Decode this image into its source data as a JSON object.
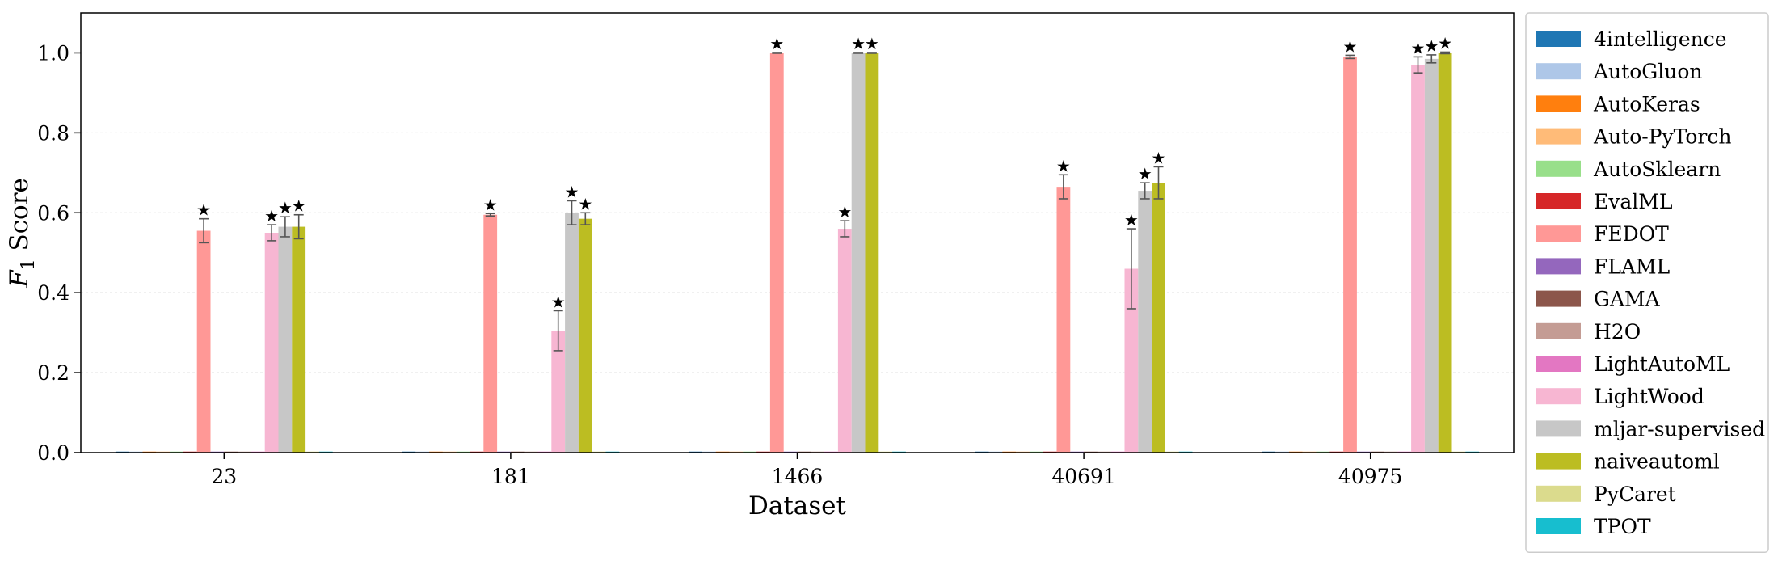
{
  "chart_data": {
    "type": "bar",
    "title": "",
    "xlabel": "Dataset",
    "ylabel": "F1 Score",
    "ylabel_main": "F",
    "ylabel_sub": "1",
    "ylabel_rest": " Score",
    "ylim": [
      0,
      1.1
    ],
    "yticks": [
      "0.0",
      "0.2",
      "0.4",
      "0.6",
      "0.8",
      "1.0"
    ],
    "grid": true,
    "legend_position": "right",
    "categories": [
      "23",
      "181",
      "1466",
      "40691",
      "40975"
    ],
    "series": [
      {
        "name": "4intelligence",
        "color": "#1f77b4",
        "values": [
          0,
          0,
          0,
          0,
          0
        ]
      },
      {
        "name": "AutoGluon",
        "color": "#aec7e8",
        "values": [
          0,
          0,
          0,
          0,
          0
        ]
      },
      {
        "name": "AutoKeras",
        "color": "#ff7f0e",
        "values": [
          0,
          0,
          0,
          0,
          0
        ]
      },
      {
        "name": "Auto-PyTorch",
        "color": "#ffbb78",
        "values": [
          0,
          0,
          0,
          0,
          0
        ]
      },
      {
        "name": "AutoSklearn",
        "color": "#98df8a",
        "values": [
          0,
          0,
          0,
          0,
          0
        ]
      },
      {
        "name": "EvalML",
        "color": "#d62728",
        "values": [
          0,
          0,
          0,
          0,
          0
        ]
      },
      {
        "name": "FEDOT",
        "color": "#ff9896",
        "values": [
          0.555,
          0.595,
          1.0,
          0.665,
          0.99
        ],
        "errors": [
          0.03,
          0.003,
          0.001,
          0.03,
          0.004
        ]
      },
      {
        "name": "FLAML",
        "color": "#9467bd",
        "values": [
          0,
          0,
          0,
          0,
          0
        ]
      },
      {
        "name": "GAMA",
        "color": "#8c564b",
        "values": [
          0,
          0,
          0,
          0,
          0
        ]
      },
      {
        "name": "H2O",
        "color": "#c49c94",
        "values": [
          0,
          0,
          0,
          0,
          0
        ]
      },
      {
        "name": "LightAutoML",
        "color": "#e377c2",
        "values": [
          0,
          0,
          0,
          0,
          0
        ]
      },
      {
        "name": "LightWood",
        "color": "#f7b6d2",
        "values": [
          0.55,
          0.305,
          0.56,
          0.46,
          0.97
        ],
        "errors": [
          0.02,
          0.05,
          0.02,
          0.1,
          0.02
        ]
      },
      {
        "name": "mljar-supervised",
        "color": "#c7c7c7",
        "values": [
          0.565,
          0.6,
          1.0,
          0.655,
          0.985
        ],
        "errors": [
          0.025,
          0.03,
          0.001,
          0.02,
          0.01
        ]
      },
      {
        "name": "naiveautoml",
        "color": "#bcbd22",
        "values": [
          0.565,
          0.585,
          1.0,
          0.675,
          1.0
        ],
        "errors": [
          0.03,
          0.015,
          0.001,
          0.04,
          0.002
        ]
      },
      {
        "name": "PyCaret",
        "color": "#dbdb8d",
        "values": [
          0,
          0,
          0,
          0,
          0
        ]
      },
      {
        "name": "TPOT",
        "color": "#17becf",
        "values": [
          0,
          0,
          0,
          0,
          0
        ]
      }
    ]
  }
}
